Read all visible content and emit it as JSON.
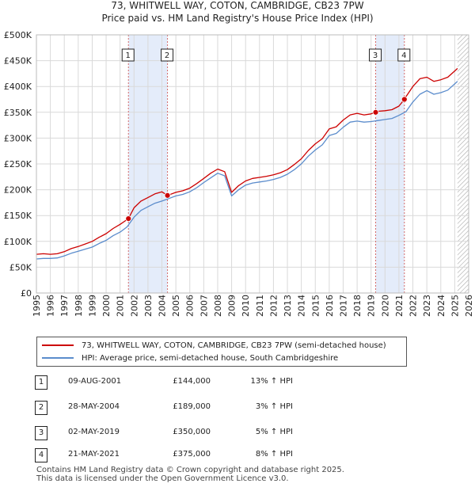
{
  "chart_data": {
    "type": "line",
    "title": "73, WHITWELL WAY, COTON, CAMBRIDGE, CB23 7PW",
    "subtitle": "Price paid vs. HM Land Registry's House Price Index (HPI)",
    "xlabel": "",
    "ylabel": "",
    "xlim": [
      1995,
      2026
    ],
    "ylim": [
      0,
      500000
    ],
    "x_ticks": [
      "1995",
      "1996",
      "1997",
      "1998",
      "1999",
      "2000",
      "2001",
      "2002",
      "2003",
      "2004",
      "2005",
      "2006",
      "2007",
      "2008",
      "2009",
      "2010",
      "2011",
      "2012",
      "2013",
      "2014",
      "2015",
      "2016",
      "2017",
      "2018",
      "2019",
      "2020",
      "2021",
      "2022",
      "2023",
      "2024",
      "2025",
      "2026"
    ],
    "y_ticks": [
      {
        "value": 0,
        "label": "£0"
      },
      {
        "value": 50000,
        "label": "£50K"
      },
      {
        "value": 100000,
        "label": "£100K"
      },
      {
        "value": 150000,
        "label": "£150K"
      },
      {
        "value": 200000,
        "label": "£200K"
      },
      {
        "value": 250000,
        "label": "£250K"
      },
      {
        "value": 300000,
        "label": "£300K"
      },
      {
        "value": 350000,
        "label": "£350K"
      },
      {
        "value": 400000,
        "label": "£400K"
      },
      {
        "value": 450000,
        "label": "£450K"
      },
      {
        "value": 500000,
        "label": "£500K"
      }
    ],
    "grid": true,
    "series": [
      {
        "name": "73, WHITWELL WAY, COTON, CAMBRIDGE, CB23 7PW (semi-detached house)",
        "color": "#cc0000",
        "x": [
          1995.0,
          1995.5,
          1996.0,
          1996.5,
          1997.0,
          1997.5,
          1998.0,
          1998.5,
          1999.0,
          1999.5,
          2000.0,
          2000.5,
          2001.0,
          2001.6,
          2002.0,
          2002.5,
          2003.0,
          2003.5,
          2004.0,
          2004.4,
          2005.0,
          2005.5,
          2006.0,
          2006.5,
          2007.0,
          2007.5,
          2008.0,
          2008.5,
          2009.0,
          2009.5,
          2010.0,
          2010.5,
          2011.0,
          2011.5,
          2012.0,
          2012.5,
          2013.0,
          2013.5,
          2014.0,
          2014.5,
          2015.0,
          2015.5,
          2016.0,
          2016.5,
          2017.0,
          2017.5,
          2018.0,
          2018.5,
          2019.0,
          2019.33,
          2019.5,
          2020.0,
          2020.5,
          2021.0,
          2021.39,
          2021.5,
          2022.0,
          2022.5,
          2023.0,
          2023.5,
          2024.0,
          2024.5,
          2025.0,
          2025.2
        ],
        "y": [
          75000,
          76000,
          75000,
          76000,
          80000,
          86000,
          90000,
          95000,
          100000,
          108000,
          115000,
          125000,
          133000,
          144000,
          165000,
          178000,
          185000,
          192000,
          196000,
          189000,
          195000,
          198000,
          203000,
          212000,
          222000,
          232000,
          240000,
          235000,
          195000,
          208000,
          217000,
          222000,
          224000,
          226000,
          229000,
          233000,
          239000,
          249000,
          260000,
          276000,
          289000,
          299000,
          318000,
          322000,
          335000,
          345000,
          348000,
          345000,
          347000,
          350000,
          352000,
          353000,
          355000,
          362000,
          375000,
          380000,
          400000,
          415000,
          418000,
          410000,
          413000,
          418000,
          430000,
          435000
        ]
      },
      {
        "name": "HPI: Average price, semi-detached house, South Cambridgeshire",
        "color": "#5b8ccc",
        "x": [
          1995.0,
          1995.5,
          1996.0,
          1996.5,
          1997.0,
          1997.5,
          1998.0,
          1998.5,
          1999.0,
          1999.5,
          2000.0,
          2000.5,
          2001.0,
          2001.5,
          2002.0,
          2002.5,
          2003.0,
          2003.5,
          2004.0,
          2004.5,
          2005.0,
          2005.5,
          2006.0,
          2006.5,
          2007.0,
          2007.5,
          2008.0,
          2008.5,
          2009.0,
          2009.5,
          2010.0,
          2010.5,
          2011.0,
          2011.5,
          2012.0,
          2012.5,
          2013.0,
          2013.5,
          2014.0,
          2014.5,
          2015.0,
          2015.5,
          2016.0,
          2016.5,
          2017.0,
          2017.5,
          2018.0,
          2018.5,
          2019.0,
          2019.5,
          2020.0,
          2020.5,
          2021.0,
          2021.5,
          2022.0,
          2022.5,
          2023.0,
          2023.5,
          2024.0,
          2024.5,
          2025.0,
          2025.2
        ],
        "y": [
          66000,
          67000,
          67000,
          68000,
          72000,
          77000,
          81000,
          85000,
          89000,
          96000,
          102000,
          111000,
          118000,
          128000,
          147000,
          160000,
          167000,
          174000,
          178000,
          183000,
          188000,
          191000,
          196000,
          204000,
          214000,
          223000,
          232000,
          227000,
          188000,
          200000,
          209000,
          213000,
          215000,
          217000,
          220000,
          224000,
          230000,
          239000,
          250000,
          265000,
          277000,
          287000,
          305000,
          309000,
          321000,
          331000,
          333000,
          331000,
          332000,
          334000,
          336000,
          338000,
          344000,
          351000,
          370000,
          385000,
          392000,
          385000,
          388000,
          393000,
          405000,
          410000
        ]
      }
    ],
    "sales": [
      {
        "label": "1",
        "x": 2001.6,
        "y": 144000
      },
      {
        "label": "2",
        "x": 2004.4,
        "y": 189000
      },
      {
        "label": "3",
        "x": 2019.33,
        "y": 350000
      },
      {
        "label": "4",
        "x": 2021.39,
        "y": 375000
      }
    ],
    "shaded_ranges": [
      [
        2001.6,
        2004.4
      ],
      [
        2019.33,
        2021.39
      ]
    ],
    "hatched_from": 2025.2
  },
  "legend": {
    "property": "73, WHITWELL WAY, COTON, CAMBRIDGE, CB23 7PW (semi-detached house)",
    "hpi": "HPI: Average price, semi-detached house, South Cambridgeshire"
  },
  "transactions": [
    {
      "num": "1",
      "date": "09-AUG-2001",
      "price": "£144,000",
      "hpi": "13% ↑ HPI"
    },
    {
      "num": "2",
      "date": "28-MAY-2004",
      "price": "£189,000",
      "hpi": "3% ↑ HPI"
    },
    {
      "num": "3",
      "date": "02-MAY-2019",
      "price": "£350,000",
      "hpi": "5% ↑ HPI"
    },
    {
      "num": "4",
      "date": "21-MAY-2021",
      "price": "£375,000",
      "hpi": "8% ↑ HPI"
    }
  ],
  "footer": {
    "line1": "Contains HM Land Registry data © Crown copyright and database right 2025.",
    "line2": "This data is licensed under the Open Government Licence v3.0."
  }
}
